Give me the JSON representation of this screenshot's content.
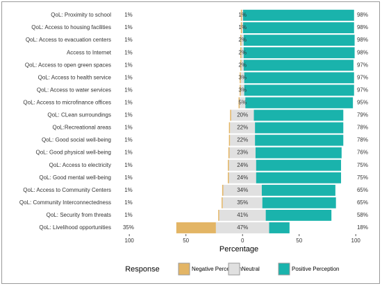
{
  "chart_data": {
    "type": "diverging-bar",
    "x_label": "Percentage",
    "legend_title": "Response",
    "categories": [
      "QoL: Proximity to school",
      "QoL: Access to housing facilities",
      "QoL: Access to evacuation centers",
      "Access to Internet",
      "QoL: Access to open green spaces",
      "QoL: Access to health service",
      "QoL: Access to water services",
      "QoL: Access to microfinance offices",
      "QoL: CLean surroundings",
      "QoL:Recreational areas",
      "QoL: Good social well-being",
      "QoL: Good physical well-being",
      "QoL: Access to electricity",
      "QoL: Good mental well-being",
      "QoL: Access to Community Centers",
      "QoL: Community Interconnectedness",
      "QoL: Security from threats",
      "QoL: Livelihood opportunities"
    ],
    "series": [
      {
        "name": "Negative Perception",
        "color": "#e3b565",
        "role": "negative",
        "values": [
          1,
          1,
          1,
          1,
          1,
          1,
          1,
          1,
          1,
          1,
          1,
          1,
          1,
          1,
          1,
          1,
          1,
          35
        ],
        "value_labels": [
          "1%",
          "1%",
          "1%",
          "1%",
          "1%",
          "1%",
          "1%",
          "1%",
          "1%",
          "1%",
          "1%",
          "1%",
          "1%",
          "1%",
          "1%",
          "1%",
          "1%",
          "35%"
        ]
      },
      {
        "name": "Neutral",
        "color": "#e0e0e0",
        "role": "neutral",
        "values": [
          1,
          1,
          2,
          2,
          2,
          3,
          3,
          5,
          20,
          22,
          22,
          23,
          24,
          24,
          34,
          35,
          41,
          47
        ],
        "value_labels": [
          "1%",
          "1%",
          "2%",
          "2%",
          "2%",
          "3%",
          "3%",
          "5%",
          "20%",
          "22%",
          "22%",
          "23%",
          "24%",
          "24%",
          "34%",
          "35%",
          "41%",
          "47%"
        ]
      },
      {
        "name": "Positive Perception",
        "color": "#1ab3ac",
        "role": "positive",
        "values": [
          98,
          98,
          98,
          98,
          97,
          97,
          97,
          95,
          79,
          78,
          78,
          76,
          75,
          75,
          65,
          65,
          58,
          18
        ],
        "value_labels": [
          "98%",
          "98%",
          "98%",
          "98%",
          "97%",
          "97%",
          "97%",
          "95%",
          "79%",
          "78%",
          "78%",
          "76%",
          "75%",
          "75%",
          "65%",
          "65%",
          "58%",
          "18%"
        ]
      }
    ],
    "xlim": [
      -113,
      106
    ],
    "xticks": [
      {
        "value": -100,
        "label": "100"
      },
      {
        "value": -50,
        "label": "50"
      },
      0,
      50,
      100
    ],
    "legend_position": "bottom"
  }
}
